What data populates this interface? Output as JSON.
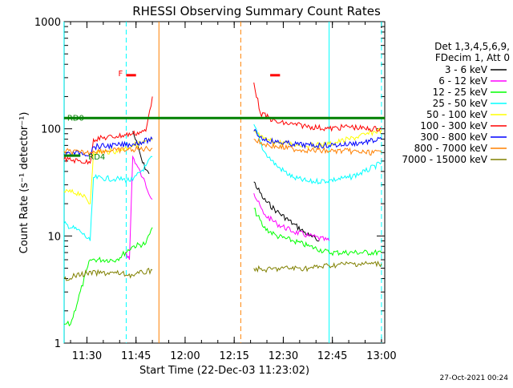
{
  "chart_data": {
    "type": "line",
    "title": "RHESSI Observing Summary Count Rates",
    "xlabel": "Start Time (22-Dec-03 11:23:02)",
    "ylabel": "Count Rate (s⁻¹ detector⁻¹)",
    "yscale": "log",
    "ylim": [
      1,
      1000
    ],
    "xlim": [
      "11:23:02",
      "13:01:00"
    ],
    "x_ticks": [
      "11:30",
      "11:45",
      "12:00",
      "12:15",
      "12:30",
      "12:45",
      "13:00"
    ],
    "y_ticks": [
      "1",
      "10",
      "100",
      "1000"
    ],
    "legend_header": [
      "Det 1,3,4,5,6,9,",
      "FDecim 1, Att 0"
    ],
    "legend_position": "right",
    "series": [
      {
        "name": "3 - 6 keV",
        "color": "#000000",
        "points": [
          [
            "11:39",
            null
          ],
          [
            "11:44",
            95
          ],
          [
            "11:46",
            62
          ],
          [
            "11:47",
            48
          ],
          [
            "11:49",
            38
          ],
          [
            "12:21",
            32
          ],
          [
            "12:24",
            22
          ],
          [
            "12:28",
            17
          ],
          [
            "12:33",
            13
          ],
          [
            "12:38",
            10
          ],
          [
            "12:41",
            9
          ]
        ]
      },
      {
        "name": "6 - 12 keV",
        "color": "#ff00ff",
        "points": [
          [
            "11:42",
            7
          ],
          [
            "11:43",
            6
          ],
          [
            "11:44",
            55
          ],
          [
            "11:47",
            35
          ],
          [
            "11:50",
            22
          ],
          [
            "12:21",
            25
          ],
          [
            "12:24",
            16
          ],
          [
            "12:28",
            13
          ],
          [
            "12:33",
            11
          ],
          [
            "12:38",
            10
          ],
          [
            "12:44",
            9
          ]
        ]
      },
      {
        "name": "12 - 25 keV",
        "color": "#00ff00",
        "points": [
          [
            "11:23",
            1.5
          ],
          [
            "11:25",
            1.5
          ],
          [
            "11:31",
            6
          ],
          [
            "11:39",
            6
          ],
          [
            "11:44",
            8
          ],
          [
            "11:48",
            8.5
          ],
          [
            "11:50",
            12
          ],
          [
            "12:21",
            18
          ],
          [
            "12:24",
            12
          ],
          [
            "12:28",
            10
          ],
          [
            "12:33",
            9
          ],
          [
            "12:38",
            8
          ],
          [
            "12:44",
            7
          ],
          [
            "13:00",
            7
          ]
        ]
      },
      {
        "name": "25 - 50 keV",
        "color": "#00ffff",
        "points": [
          [
            "11:23",
            13
          ],
          [
            "11:28",
            11
          ],
          [
            "11:31",
            9
          ],
          [
            "11:32",
            35
          ],
          [
            "11:39",
            34
          ],
          [
            "11:44",
            33
          ],
          [
            "11:48",
            45
          ],
          [
            "11:50",
            55
          ],
          [
            "12:21",
            110
          ],
          [
            "12:24",
            62
          ],
          [
            "12:28",
            45
          ],
          [
            "12:33",
            35
          ],
          [
            "12:38",
            32
          ],
          [
            "12:44",
            33
          ],
          [
            "12:50",
            35
          ],
          [
            "12:55",
            40
          ],
          [
            "13:00",
            48
          ]
        ]
      },
      {
        "name": "50 - 100 keV",
        "color": "#ffff00",
        "points": [
          [
            "11:23",
            26
          ],
          [
            "11:28",
            25
          ],
          [
            "11:31",
            20
          ],
          [
            "11:32",
            60
          ],
          [
            "11:39",
            62
          ],
          [
            "11:44",
            70
          ],
          [
            "11:50",
            78
          ],
          [
            "12:21",
            95
          ],
          [
            "12:24",
            80
          ],
          [
            "12:28",
            75
          ],
          [
            "12:33",
            72
          ],
          [
            "12:38",
            70
          ],
          [
            "12:44",
            72
          ],
          [
            "12:50",
            80
          ],
          [
            "12:55",
            88
          ],
          [
            "13:00",
            98
          ]
        ]
      },
      {
        "name": "100 - 300 keV",
        "color": "#ff0000",
        "points": [
          [
            "11:23",
            52
          ],
          [
            "11:28",
            50
          ],
          [
            "11:31",
            48
          ],
          [
            "11:32",
            80
          ],
          [
            "11:39",
            85
          ],
          [
            "11:44",
            90
          ],
          [
            "11:48",
            95
          ],
          [
            "11:50",
            200
          ],
          [
            "12:21",
            270
          ],
          [
            "12:23",
            140
          ],
          [
            "12:28",
            115
          ],
          [
            "12:33",
            110
          ],
          [
            "12:38",
            105
          ],
          [
            "12:44",
            100
          ],
          [
            "12:50",
            105
          ],
          [
            "12:55",
            100
          ],
          [
            "13:00",
            100
          ]
        ]
      },
      {
        "name": "300 - 800 keV",
        "color": "#0000ff",
        "points": [
          [
            "11:23",
            58
          ],
          [
            "11:28",
            60
          ],
          [
            "11:31",
            58
          ],
          [
            "11:32",
            68
          ],
          [
            "11:39",
            70
          ],
          [
            "11:44",
            72
          ],
          [
            "11:50",
            80
          ],
          [
            "12:21",
            95
          ],
          [
            "12:24",
            80
          ],
          [
            "12:28",
            75
          ],
          [
            "12:33",
            72
          ],
          [
            "12:38",
            70
          ],
          [
            "12:44",
            70
          ],
          [
            "12:50",
            72
          ],
          [
            "12:55",
            75
          ],
          [
            "13:00",
            80
          ]
        ]
      },
      {
        "name": "800 - 7000 keV",
        "color": "#ff8000",
        "points": [
          [
            "11:23",
            62
          ],
          [
            "11:28",
            60
          ],
          [
            "11:31",
            60
          ],
          [
            "11:32",
            62
          ],
          [
            "11:39",
            63
          ],
          [
            "11:44",
            64
          ],
          [
            "11:50",
            66
          ],
          [
            "12:21",
            80
          ],
          [
            "12:24",
            72
          ],
          [
            "12:28",
            68
          ],
          [
            "12:33",
            65
          ],
          [
            "12:38",
            63
          ],
          [
            "12:44",
            62
          ],
          [
            "12:50",
            62
          ],
          [
            "12:55",
            60
          ],
          [
            "13:00",
            60
          ]
        ]
      },
      {
        "name": "7000 - 15000 keV",
        "color": "#808000",
        "points": [
          [
            "11:23",
            4
          ],
          [
            "11:30",
            4.5
          ],
          [
            "11:39",
            4.5
          ],
          [
            "11:44",
            4.3
          ],
          [
            "11:50",
            4.8
          ],
          [
            "12:21",
            5
          ],
          [
            "12:24",
            4.8
          ],
          [
            "12:30",
            5
          ],
          [
            "12:38",
            5
          ],
          [
            "12:44",
            5.3
          ],
          [
            "12:50",
            5.5
          ],
          [
            "13:00",
            5.5
          ]
        ]
      }
    ],
    "annotations": {
      "segments": [
        {
          "label": "N",
          "color": "#00ffff",
          "y_level": 4.5,
          "ranges": [
            [
              "11:24",
              "11:40"
            ],
            [
              "12:45",
              "13:00"
            ]
          ]
        },
        {
          "label": "F",
          "color": "#ff0000",
          "y_level": 3.5,
          "ranges": [
            [
              "11:42",
              "11:45"
            ],
            [
              "12:26",
              "12:29"
            ]
          ]
        },
        {
          "label": "S",
          "color": "#ff8000",
          "y_level": 5.2,
          "ranges": [
            [
              "11:53",
              "12:14"
            ]
          ]
        },
        {
          "label": "RD0",
          "color": "#008000",
          "y_level": 3.1,
          "ranges": [
            [
              "11:23",
              "13:01"
            ]
          ]
        },
        {
          "label": "RD4",
          "color": "#008000",
          "y_level": 2.75,
          "ranges": [
            [
              "11:23",
              "11:28"
            ]
          ]
        }
      ],
      "vlines": [
        {
          "time": "11:23",
          "color": "#00ffff",
          "style": "solid"
        },
        {
          "time": "11:42",
          "color": "#00ffff",
          "style": "dashed"
        },
        {
          "time": "11:52",
          "color": "#ff8000",
          "style": "solid"
        },
        {
          "time": "12:17",
          "color": "#ff8000",
          "style": "dashed"
        },
        {
          "time": "12:44",
          "color": "#00ffff",
          "style": "solid"
        },
        {
          "time": "13:00",
          "color": "#00ffff",
          "style": "dashed"
        }
      ]
    }
  },
  "footer_stamp": "27-Oct-2021 00:24"
}
